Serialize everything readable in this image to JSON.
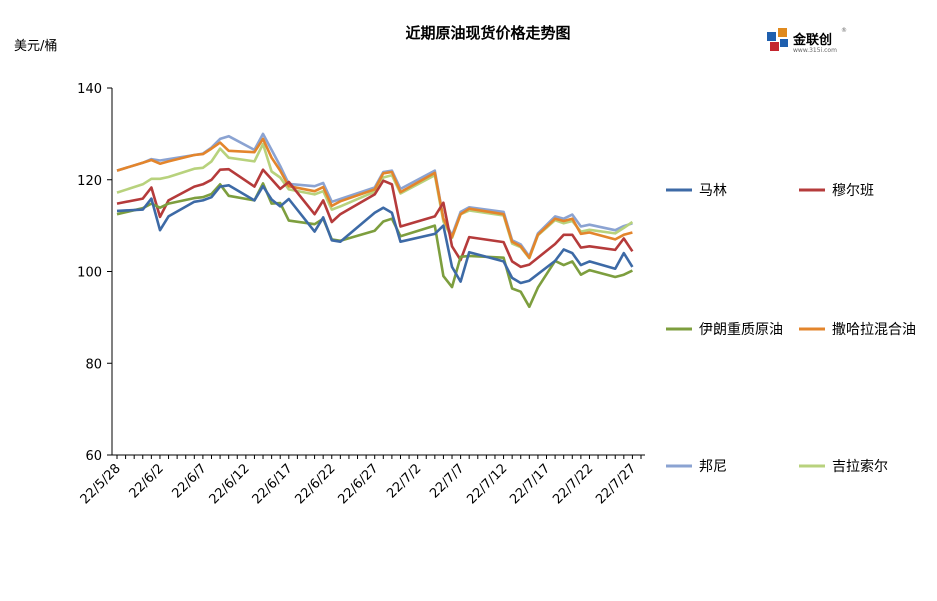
{
  "logo": {
    "text": "金联创",
    "sub": "www.315i.com",
    "mark": "®"
  },
  "colors": {
    "马林": "#3d6aa6",
    "穆尔班": "#b53b3b",
    "伊朗重质原油": "#7d9e3e",
    "撒哈拉混合油": "#e3852c",
    "邦尼": "#8ba3d2",
    "吉拉索尔": "#b8d27d"
  },
  "chart_data": {
    "type": "line",
    "title": "近期原油现货价格走势图",
    "xlabel": "",
    "ylabel": "美元/桶",
    "ylim": [
      60,
      140
    ],
    "yticks": [
      60,
      80,
      100,
      120,
      140
    ],
    "grid": false,
    "legend_position": "right",
    "x": [
      "22/5/28",
      "22/5/29",
      "22/5/30",
      "22/5/31",
      "22/6/1",
      "22/6/2",
      "22/6/3",
      "22/6/4",
      "22/6/5",
      "22/6/6",
      "22/6/7",
      "22/6/8",
      "22/6/9",
      "22/6/10",
      "22/6/11",
      "22/6/12",
      "22/6/13",
      "22/6/14",
      "22/6/15",
      "22/6/16",
      "22/6/17",
      "22/6/18",
      "22/6/19",
      "22/6/20",
      "22/6/21",
      "22/6/22",
      "22/6/23",
      "22/6/24",
      "22/6/25",
      "22/6/26",
      "22/6/27",
      "22/6/28",
      "22/6/29",
      "22/6/30",
      "22/7/1",
      "22/7/2",
      "22/7/3",
      "22/7/4",
      "22/7/5",
      "22/7/6",
      "22/7/7",
      "22/7/8",
      "22/7/9",
      "22/7/10",
      "22/7/11",
      "22/7/12",
      "22/7/13",
      "22/7/14",
      "22/7/15",
      "22/7/16",
      "22/7/17",
      "22/7/18",
      "22/7/19",
      "22/7/20",
      "22/7/21",
      "22/7/22",
      "22/7/23",
      "22/7/24",
      "22/7/25",
      "22/7/26",
      "22/7/27",
      "22/7/28"
    ],
    "xticks": [
      "22/5/28",
      "22/6/2",
      "22/6/7",
      "22/6/12",
      "22/6/17",
      "22/6/22",
      "22/6/27",
      "22/7/2",
      "22/7/7",
      "22/7/12",
      "22/7/17",
      "22/7/22",
      "22/7/27"
    ],
    "series": [
      {
        "name": "马林",
        "values": [
          113.2,
          null,
          null,
          113.5,
          115.9,
          109.0,
          112.0,
          null,
          null,
          115.2,
          115.5,
          116.2,
          118.5,
          118.8,
          null,
          null,
          115.5,
          118.6,
          115.7,
          114.2,
          115.8,
          null,
          null,
          108.7,
          111.8,
          106.8,
          106.5,
          null,
          null,
          null,
          112.8,
          113.9,
          112.8,
          106.5,
          null,
          null,
          null,
          108.2,
          110.0,
          101.0,
          97.8,
          104.2,
          null,
          null,
          null,
          102.2,
          98.6,
          97.5,
          98.0,
          null,
          null,
          102.3,
          104.8,
          104.0,
          101.4,
          102.2,
          null,
          null,
          100.6,
          104.0,
          101.0,
          null
        ]
      },
      {
        "name": "穆尔班",
        "values": [
          114.8,
          null,
          null,
          115.9,
          118.3,
          111.9,
          115.5,
          null,
          null,
          118.5,
          119.0,
          120.0,
          122.2,
          122.3,
          null,
          null,
          118.5,
          122.2,
          120.1,
          118.0,
          119.5,
          null,
          null,
          112.5,
          115.5,
          110.8,
          112.5,
          null,
          null,
          null,
          116.8,
          119.8,
          119.0,
          109.8,
          null,
          null,
          null,
          112.0,
          115.0,
          105.5,
          102.5,
          107.5,
          null,
          null,
          null,
          106.4,
          102.2,
          101.0,
          101.5,
          null,
          null,
          106.0,
          108.0,
          108.0,
          105.2,
          105.5,
          null,
          null,
          104.7,
          107.2,
          104.4,
          null
        ]
      },
      {
        "name": "伊朗重质原油",
        "values": [
          112.5,
          null,
          null,
          113.8,
          114.8,
          113.9,
          114.8,
          null,
          null,
          116.0,
          116.2,
          116.9,
          119.0,
          116.5,
          null,
          null,
          115.5,
          119.2,
          114.8,
          114.9,
          111.1,
          null,
          null,
          110.3,
          111.5,
          107.0,
          106.7,
          null,
          null,
          null,
          108.9,
          110.9,
          111.5,
          107.7,
          null,
          null,
          null,
          110.0,
          99.0,
          96.6,
          103.2,
          103.4,
          null,
          null,
          null,
          103.0,
          96.3,
          95.6,
          92.3,
          96.5,
          null,
          102.3,
          101.4,
          102.2,
          99.3,
          100.3,
          null,
          null,
          98.8,
          99.3,
          100.2,
          null
        ]
      },
      {
        "name": "撒哈拉混合油",
        "values": [
          122.0,
          null,
          null,
          123.7,
          124.3,
          123.5,
          124.0,
          null,
          null,
          125.4,
          125.6,
          126.8,
          128.1,
          126.3,
          null,
          null,
          126.0,
          128.9,
          124.8,
          122.0,
          118.6,
          null,
          null,
          117.5,
          118.4,
          114.3,
          115.3,
          null,
          null,
          null,
          117.9,
          121.4,
          121.7,
          117.3,
          null,
          null,
          null,
          121.5,
          111.5,
          107.5,
          112.5,
          113.7,
          null,
          null,
          null,
          112.5,
          106.5,
          105.5,
          103.0,
          108.0,
          null,
          111.5,
          111.0,
          111.5,
          108.2,
          108.5,
          null,
          null,
          107.0,
          108.0,
          108.5,
          null
        ]
      },
      {
        "name": "邦尼",
        "values": [
          122.0,
          null,
          null,
          123.7,
          124.5,
          124.2,
          124.5,
          null,
          null,
          125.4,
          125.7,
          127.0,
          128.9,
          129.5,
          null,
          null,
          126.5,
          130.0,
          126.5,
          123.0,
          119.1,
          null,
          null,
          118.6,
          119.3,
          115.2,
          115.8,
          null,
          null,
          null,
          118.3,
          121.7,
          122.0,
          118.0,
          null,
          null,
          null,
          122.0,
          111.5,
          107.9,
          113.0,
          114.0,
          null,
          null,
          null,
          113.0,
          106.8,
          105.9,
          103.3,
          108.3,
          null,
          112.0,
          111.5,
          112.4,
          109.8,
          110.2,
          null,
          null,
          109.0,
          109.9,
          110.5,
          null
        ]
      },
      {
        "name": "吉拉索尔",
        "values": [
          117.2,
          null,
          null,
          119.0,
          120.2,
          120.2,
          120.6,
          null,
          null,
          122.4,
          122.6,
          124.0,
          126.8,
          124.8,
          null,
          null,
          124.0,
          127.8,
          121.8,
          120.5,
          117.9,
          null,
          null,
          116.8,
          117.5,
          113.5,
          114.2,
          null,
          null,
          null,
          117.4,
          120.5,
          121.0,
          117.0,
          null,
          null,
          null,
          121.0,
          110.9,
          107.3,
          112.5,
          113.3,
          null,
          null,
          null,
          112.2,
          106.1,
          105.3,
          102.9,
          107.9,
          null,
          111.2,
          110.5,
          111.0,
          108.7,
          109.1,
          null,
          null,
          108.3,
          109.5,
          110.8,
          null
        ]
      }
    ]
  }
}
